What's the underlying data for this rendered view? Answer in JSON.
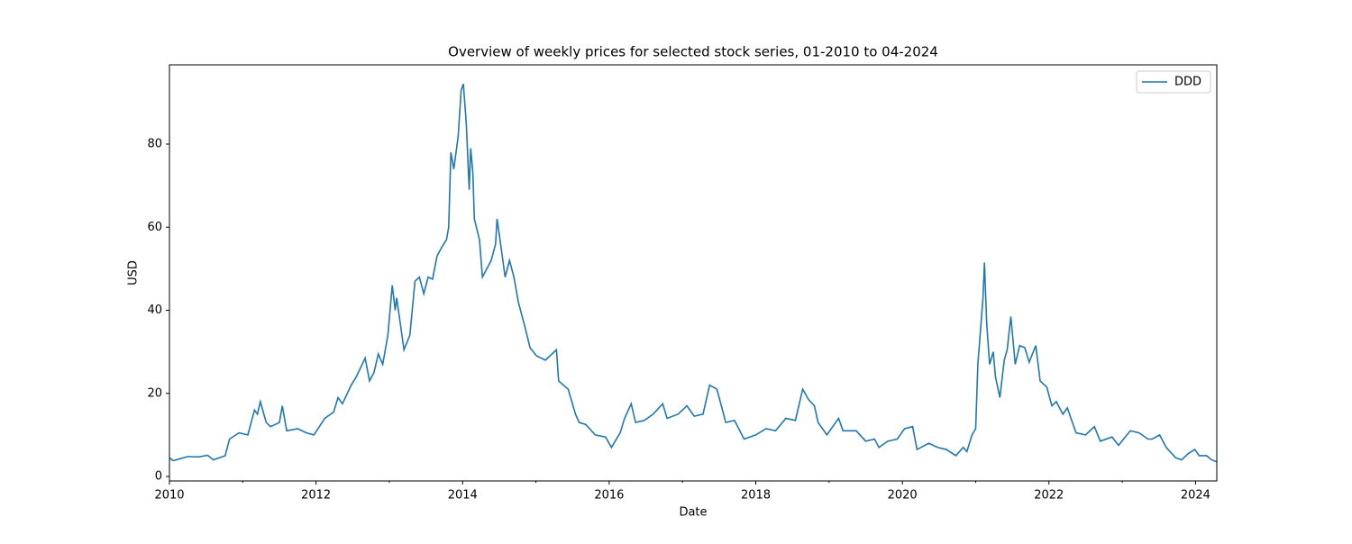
{
  "chart_data": {
    "type": "line",
    "title": "Overview of weekly prices for selected stock series, 01-2010 to 04-2024",
    "x_label": "Date",
    "y_label": "USD",
    "x": [
      2010.0,
      2010.05,
      2010.15,
      2010.25,
      2010.4,
      2010.52,
      2010.6,
      2010.76,
      2010.82,
      2010.95,
      2011.07,
      2011.16,
      2011.2,
      2011.24,
      2011.32,
      2011.38,
      2011.5,
      2011.54,
      2011.6,
      2011.75,
      2011.87,
      2011.97,
      2012.12,
      2012.24,
      2012.3,
      2012.36,
      2012.48,
      2012.55,
      2012.67,
      2012.73,
      2012.79,
      2012.85,
      2012.91,
      2012.98,
      2013.04,
      2013.08,
      2013.1,
      2013.2,
      2013.28,
      2013.35,
      2013.41,
      2013.47,
      2013.53,
      2013.59,
      2013.65,
      2013.71,
      2013.78,
      2013.81,
      2013.84,
      2013.88,
      2013.94,
      2013.98,
      2014.01,
      2014.05,
      2014.09,
      2014.11,
      2014.14,
      2014.16,
      2014.23,
      2014.27,
      2014.33,
      2014.39,
      2014.45,
      2014.47,
      2014.51,
      2014.58,
      2014.64,
      2014.7,
      2014.76,
      2014.85,
      2014.92,
      2015.01,
      2015.13,
      2015.19,
      2015.28,
      2015.31,
      2015.44,
      2015.54,
      2015.59,
      2015.68,
      2015.81,
      2015.95,
      2016.03,
      2016.15,
      2016.21,
      2016.3,
      2016.36,
      2016.48,
      2016.6,
      2016.73,
      2016.79,
      2016.94,
      2017.06,
      2017.16,
      2017.28,
      2017.37,
      2017.47,
      2017.59,
      2017.71,
      2017.84,
      2018.0,
      2018.14,
      2018.27,
      2018.41,
      2018.54,
      2018.64,
      2018.72,
      2018.8,
      2018.85,
      2018.97,
      2019.13,
      2019.19,
      2019.37,
      2019.5,
      2019.62,
      2019.68,
      2019.8,
      2019.93,
      2020.03,
      2020.14,
      2020.2,
      2020.36,
      2020.48,
      2020.6,
      2020.73,
      2020.83,
      2020.88,
      2020.95,
      2021.0,
      2021.03,
      2021.1,
      2021.12,
      2021.15,
      2021.19,
      2021.24,
      2021.27,
      2021.33,
      2021.39,
      2021.43,
      2021.48,
      2021.54,
      2021.6,
      2021.67,
      2021.73,
      2021.82,
      2021.88,
      2021.97,
      2022.04,
      2022.1,
      2022.19,
      2022.25,
      2022.37,
      2022.5,
      2022.62,
      2022.7,
      2022.86,
      2022.95,
      2023.11,
      2023.23,
      2023.35,
      2023.41,
      2023.51,
      2023.6,
      2023.73,
      2023.81,
      2023.9,
      2023.99,
      2024.05,
      2024.15,
      2024.22,
      2024.29
    ],
    "series": [
      {
        "name": "DDD",
        "color": "#1f77b4",
        "values": [
          4.5,
          3.8,
          4.3,
          4.8,
          4.7,
          5.1,
          4.0,
          5.0,
          9.0,
          10.5,
          10.0,
          16.0,
          15.0,
          18.0,
          13.0,
          12.0,
          13.0,
          17.0,
          11.0,
          11.5,
          10.5,
          10.0,
          14.0,
          15.5,
          19.0,
          17.5,
          22.0,
          24.0,
          28.5,
          23.0,
          25.0,
          29.5,
          27.0,
          34.0,
          46.0,
          40.0,
          43.0,
          30.5,
          34.0,
          47.0,
          48.0,
          44.0,
          48.0,
          47.5,
          53.0,
          55.0,
          57.0,
          60.0,
          78.0,
          74.0,
          82.0,
          93.0,
          94.5,
          85.0,
          69.0,
          79.0,
          73.0,
          62.0,
          57.0,
          48.0,
          50.0,
          52.0,
          56.0,
          62.0,
          57.0,
          48.0,
          52.0,
          48.0,
          42.0,
          36.0,
          31.0,
          29.0,
          28.0,
          29.0,
          30.5,
          23.0,
          21.0,
          15.0,
          13.0,
          12.5,
          10.0,
          9.5,
          7.0,
          10.5,
          14.0,
          17.5,
          13.0,
          13.5,
          15.0,
          17.5,
          14.0,
          15.0,
          17.0,
          14.5,
          15.0,
          22.0,
          21.0,
          13.0,
          13.5,
          9.0,
          10.0,
          11.5,
          11.0,
          14.0,
          13.5,
          21.0,
          18.5,
          17.0,
          13.0,
          10.0,
          14.0,
          11.0,
          11.0,
          8.5,
          9.0,
          7.0,
          8.5,
          9.0,
          11.5,
          12.0,
          6.5,
          8.0,
          7.0,
          6.5,
          5.0,
          7.0,
          6.0,
          10.0,
          11.5,
          27.0,
          43.0,
          51.5,
          37.0,
          27.0,
          30.0,
          24.0,
          19.0,
          28.0,
          30.5,
          38.5,
          27.0,
          31.5,
          31.0,
          27.5,
          31.5,
          23.0,
          21.5,
          17.0,
          18.0,
          15.0,
          16.5,
          10.5,
          10.0,
          12.0,
          8.5,
          9.5,
          7.5,
          11.0,
          10.5,
          9.0,
          9.0,
          10.0,
          7.0,
          4.5,
          4.0,
          5.5,
          6.5,
          5.0,
          5.0,
          4.0,
          3.5
        ]
      }
    ],
    "xlim": [
      2010,
      2024.29
    ],
    "xticks": [
      2010,
      2012,
      2014,
      2016,
      2018,
      2020,
      2022,
      2024
    ],
    "xminorticks": [
      2011,
      2013,
      2015,
      2017,
      2019,
      2021,
      2023
    ],
    "ylim": [
      -1.08,
      99.08
    ],
    "yticks": [
      0,
      20,
      40,
      60,
      80
    ],
    "legend": "upper right"
  }
}
